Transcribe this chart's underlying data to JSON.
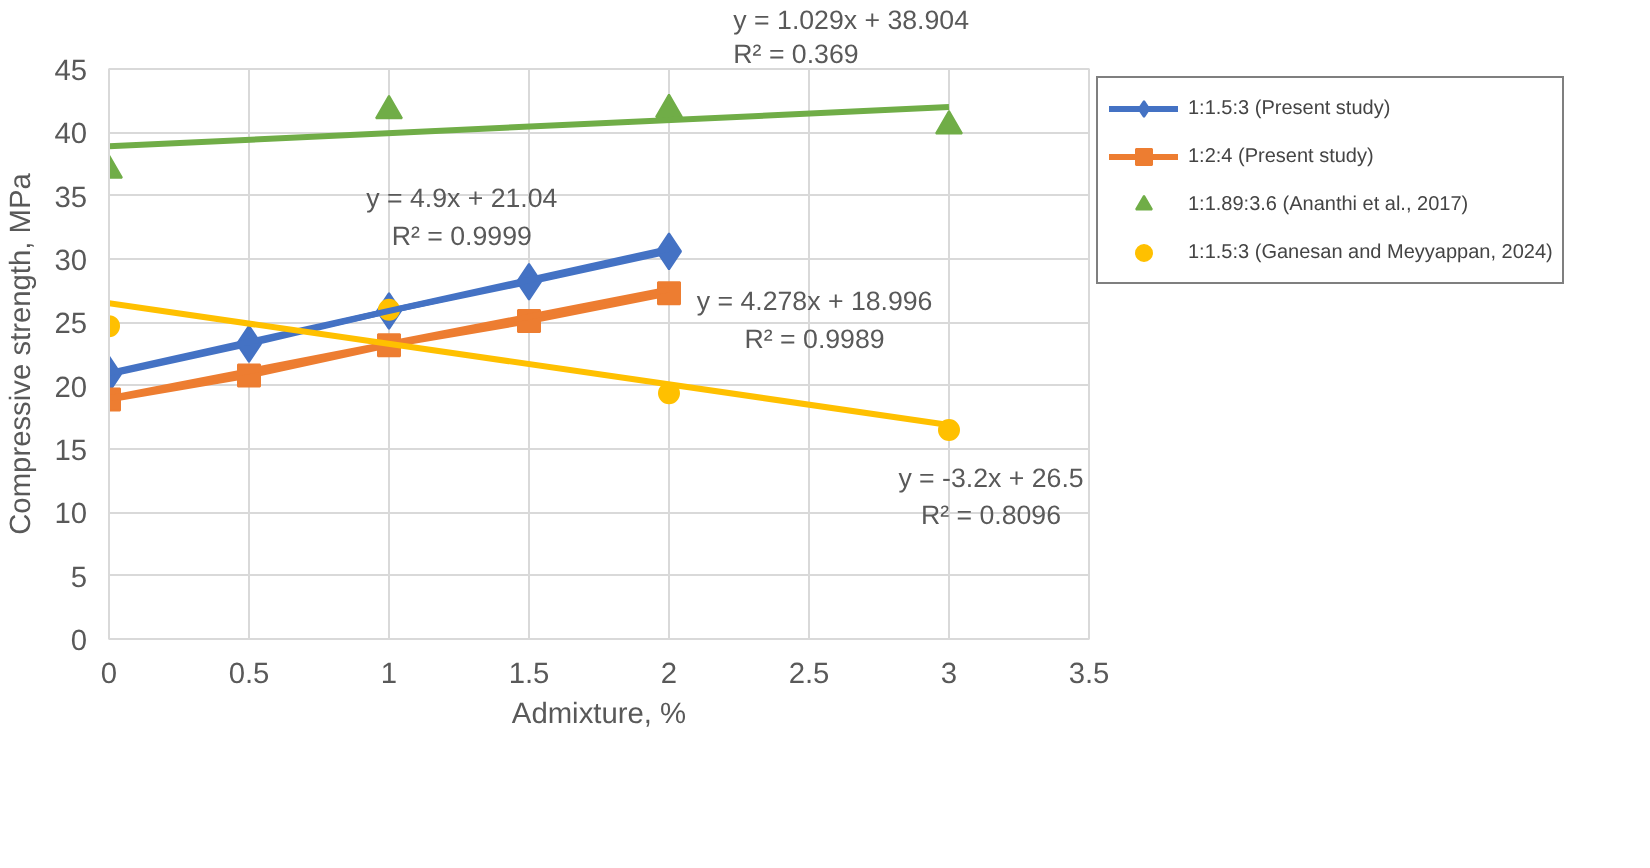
{
  "chart_data": {
    "type": "line",
    "xlabel": "Admixture, %",
    "ylabel": "Compressive strength, MPa",
    "xlim": [
      0,
      3.5
    ],
    "xticks": [
      0,
      0.5,
      1,
      1.5,
      2,
      2.5,
      3,
      3.5
    ],
    "ylim": [
      0,
      45
    ],
    "yticks": [
      0,
      5,
      10,
      15,
      20,
      25,
      30,
      35,
      40,
      45
    ],
    "grid": true,
    "legend": "right",
    "series": [
      {
        "name": "1:1.5:3 (Present study)",
        "marker": "diamond",
        "color": "#4472c4",
        "x": [
          0,
          0.5,
          1,
          1.5,
          2
        ],
        "values": [
          20.9,
          23.3,
          25.9,
          28.2,
          30.6
        ]
      },
      {
        "name": "1:2:4 (Present study)",
        "marker": "square",
        "color": "#ed7d31",
        "x": [
          0,
          0.5,
          1,
          1.5,
          2
        ],
        "values": [
          18.9,
          20.8,
          23.2,
          25.1,
          27.3
        ]
      },
      {
        "name": "1:1.89:3.6 (Ananthi et al., 2017)",
        "type": "scatter",
        "marker": "triangle",
        "color": "#70ad47",
        "x": [
          0,
          1,
          2,
          3
        ],
        "values": [
          37.0,
          41.7,
          41.8,
          40.5
        ]
      },
      {
        "name": "1:1.5:3 (Ganesan and Meyyappan, 2024)",
        "type": "scatter",
        "marker": "circle",
        "color": "#ffc000",
        "x": [
          0,
          1,
          2,
          3
        ],
        "values": [
          24.7,
          26.0,
          19.4,
          16.5
        ]
      },
      {
        "color": "#4472c4",
        "x": [
          0,
          2
        ],
        "values": [
          21.0,
          30.8
        ]
      },
      {
        "color": "#ed7d31",
        "x": [
          0,
          2
        ],
        "values": [
          19.0,
          27.6
        ]
      },
      {
        "color": "#70ad47",
        "x": [
          0,
          3
        ],
        "values": [
          38.9,
          42.0
        ]
      },
      {
        "color": "#ffc000",
        "x": [
          0,
          3
        ],
        "values": [
          26.5,
          16.9
        ]
      }
    ],
    "annotations": [
      "y = 4.9x + 21.04\nR² = 0.9999",
      "y = 4.278x + 18.996\nR² = 0.9989",
      "y = 1.029x + 38.904\nR² = 0.369",
      "y = -3.2x + 26.5\nR² = 0.8096"
    ]
  }
}
